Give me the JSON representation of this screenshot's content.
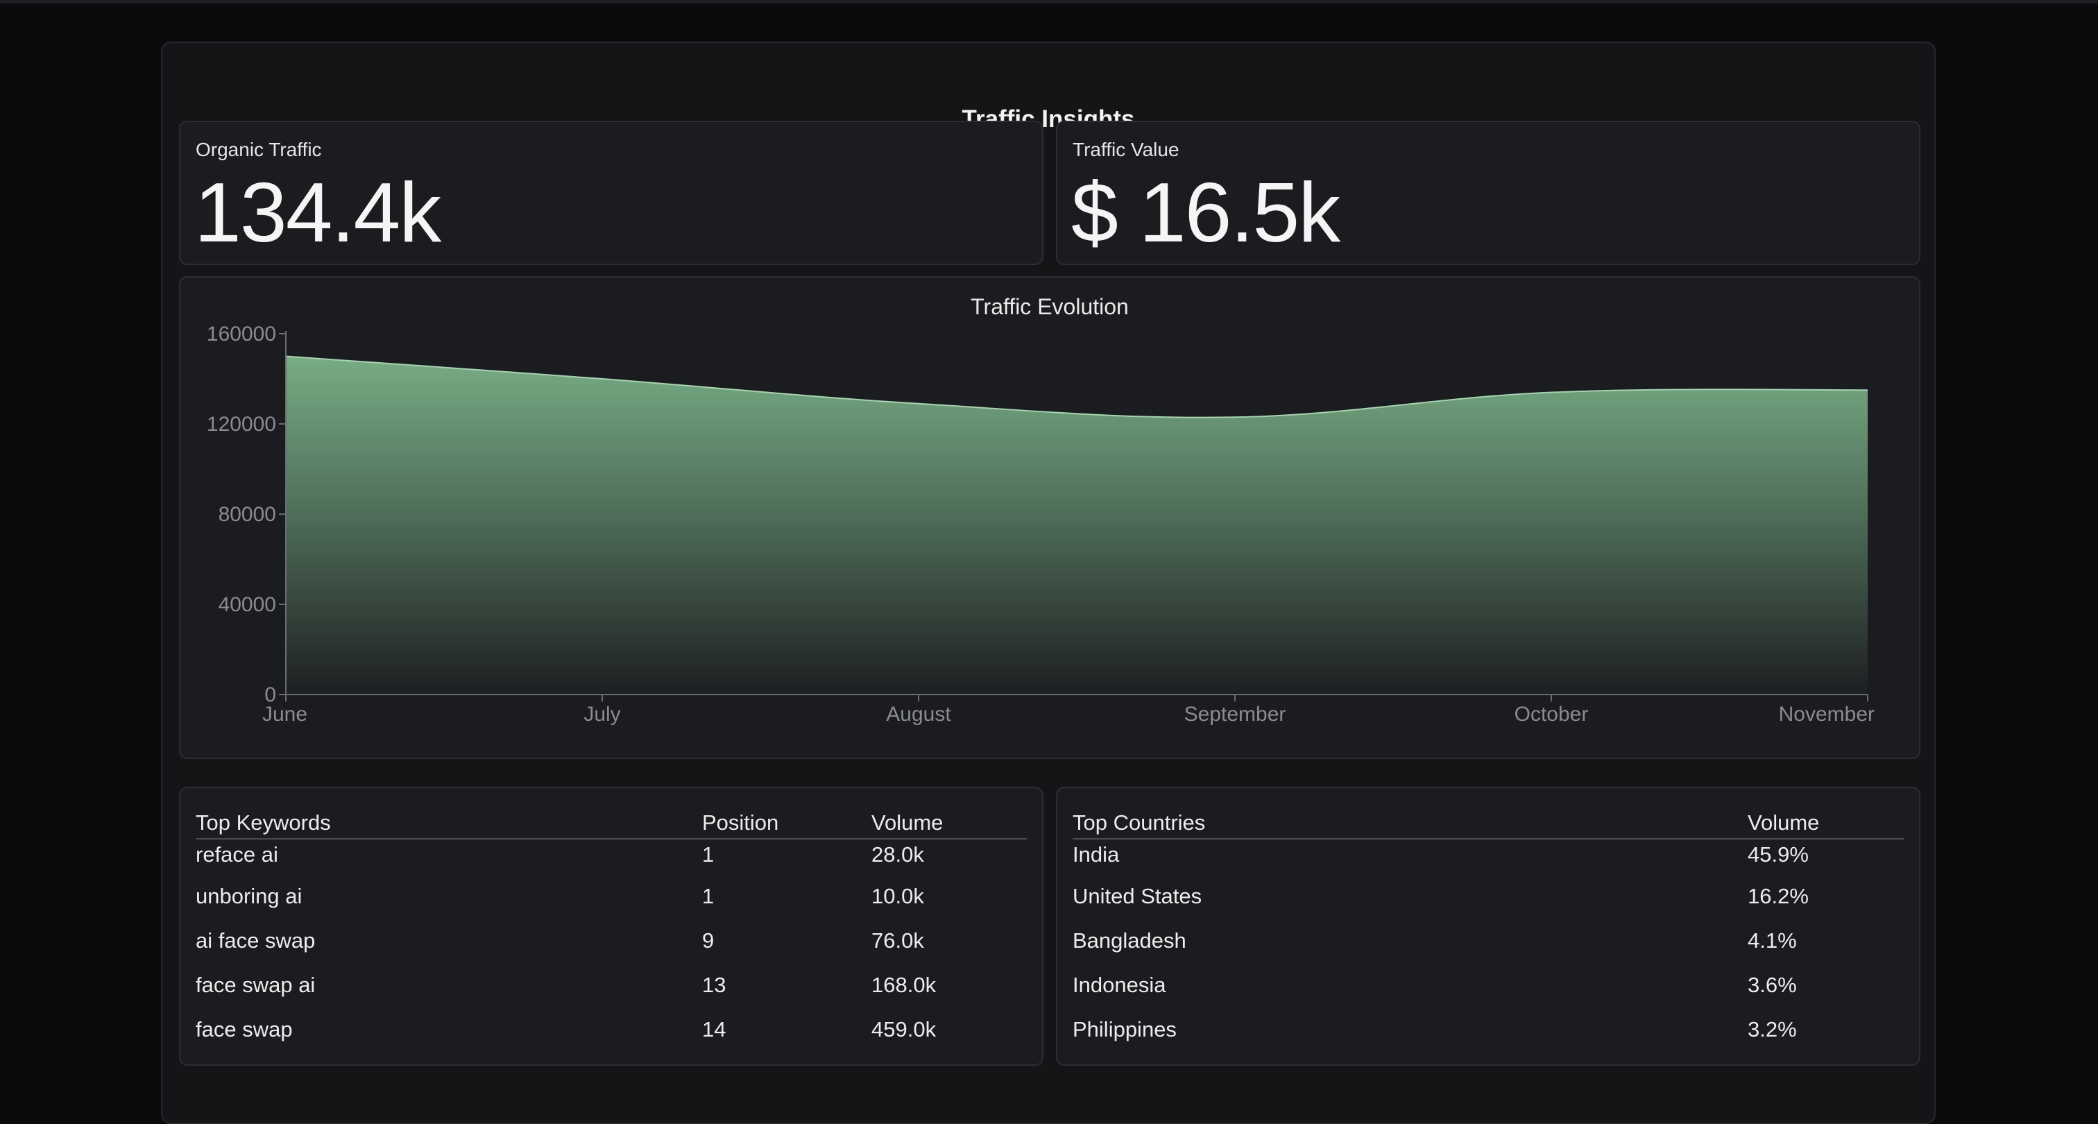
{
  "header": {
    "title": "Traffic Insights"
  },
  "kpis": {
    "organic": {
      "label": "Organic Traffic",
      "value": "134.4k"
    },
    "value": {
      "label": "Traffic Value",
      "value": "$ 16.5k"
    }
  },
  "chart_data": {
    "type": "area",
    "title": "Traffic Evolution",
    "categories": [
      "June",
      "July",
      "August",
      "September",
      "October",
      "November"
    ],
    "values": [
      150000,
      140000,
      129000,
      123000,
      134000,
      135000
    ],
    "ylim": [
      0,
      160000
    ],
    "yticks": [
      "0",
      "40000",
      "80000",
      "120000",
      "160000"
    ],
    "ytick_values": [
      0,
      40000,
      80000,
      120000,
      160000
    ],
    "grid": false,
    "fill_color": "#7cb48a"
  },
  "keywords": {
    "headers": {
      "keyword": "Top Keywords",
      "position": "Position",
      "volume": "Volume"
    },
    "rows": [
      {
        "keyword": "reface ai",
        "position": "1",
        "volume": "28.0k"
      },
      {
        "keyword": "unboring ai",
        "position": "1",
        "volume": "10.0k"
      },
      {
        "keyword": "ai face swap",
        "position": "9",
        "volume": "76.0k"
      },
      {
        "keyword": "face swap ai",
        "position": "13",
        "volume": "168.0k"
      },
      {
        "keyword": "face swap",
        "position": "14",
        "volume": "459.0k"
      }
    ]
  },
  "countries": {
    "headers": {
      "country": "Top Countries",
      "volume": "Volume"
    },
    "rows": [
      {
        "country": "India",
        "volume": "45.9%"
      },
      {
        "country": "United States",
        "volume": "16.2%"
      },
      {
        "country": "Bangladesh",
        "volume": "4.1%"
      },
      {
        "country": "Indonesia",
        "volume": "3.6%"
      },
      {
        "country": "Philippines",
        "volume": "3.2%"
      }
    ]
  }
}
